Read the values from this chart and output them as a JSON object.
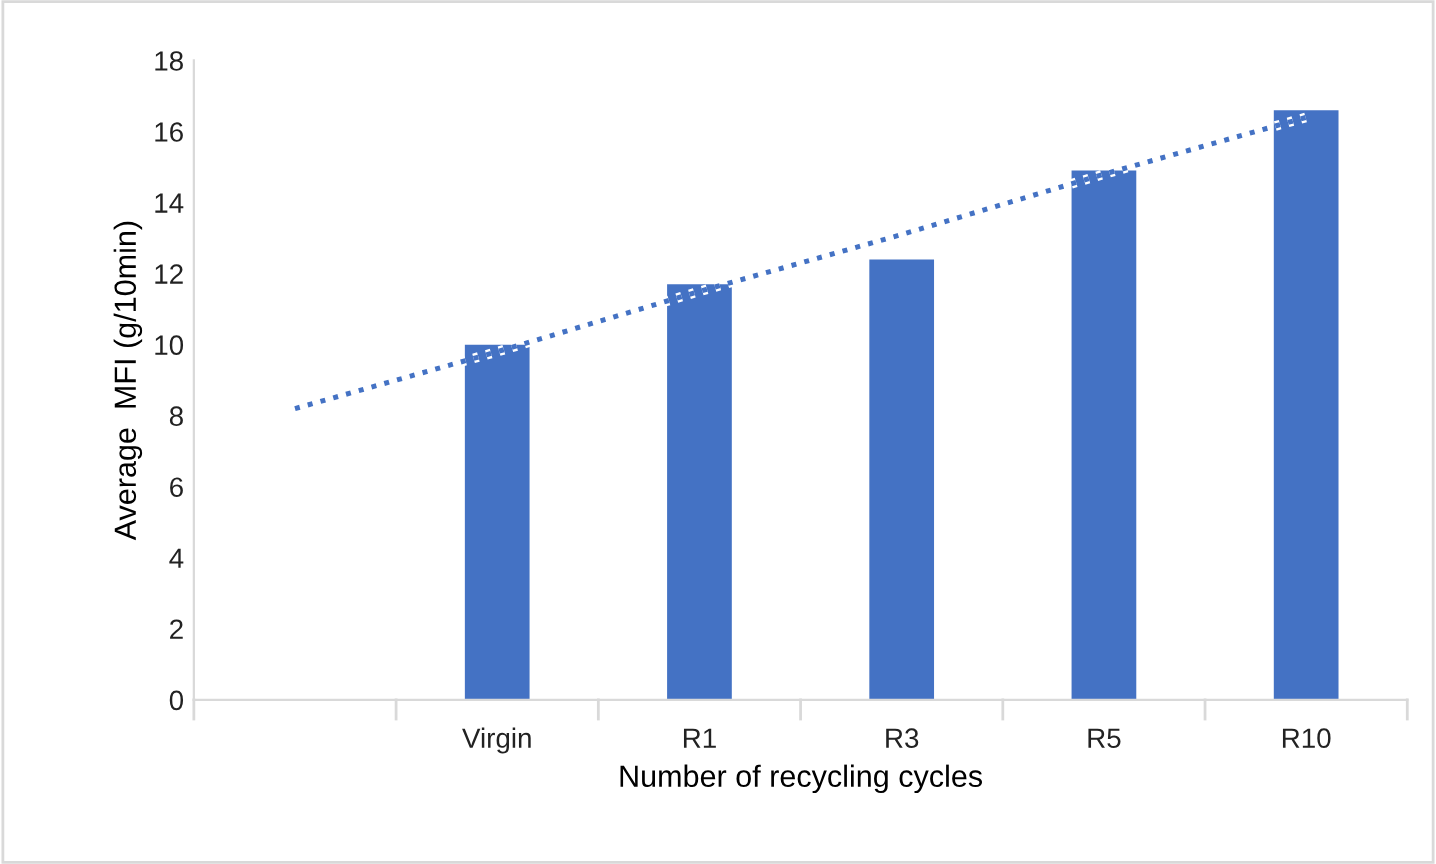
{
  "chart_data": {
    "type": "bar",
    "xlabel": "Number of recycling cycles",
    "ylabel": "Average  MFI (g/10min)",
    "categories": [
      null,
      "Virgin",
      "R1",
      "R3",
      "R5",
      "R10"
    ],
    "series": [
      {
        "color": "#4472c4",
        "values": [
          null,
          10.0,
          11.7,
          12.4,
          14.9,
          16.6
        ]
      },
      {
        "type": "line",
        "color": "#4472c4",
        "line_style": "dotted",
        "values": [
          8.2,
          9.8,
          11.5,
          13.1,
          14.8,
          16.4
        ]
      }
    ],
    "ylim": [
      0,
      18
    ],
    "yticks": [
      0,
      2,
      4,
      6,
      8,
      10,
      12,
      14,
      16,
      18
    ],
    "grid": false,
    "legend": false
  }
}
